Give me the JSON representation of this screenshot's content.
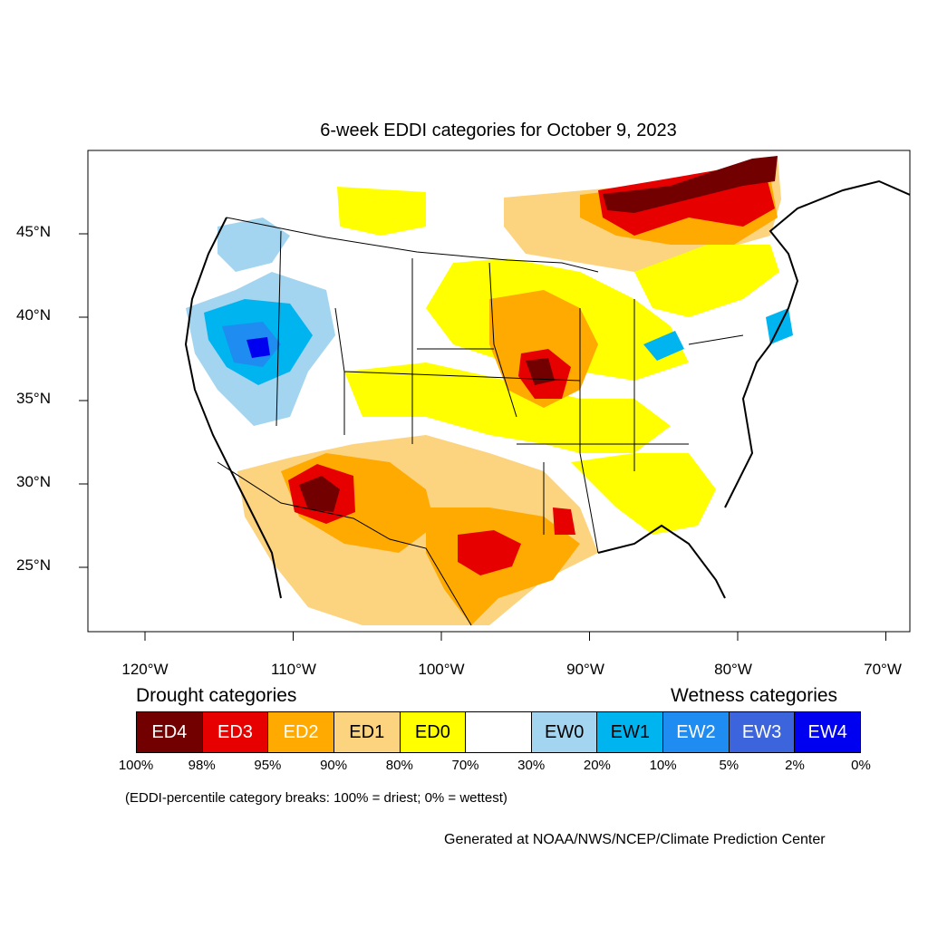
{
  "title": "6-week EDDI categories for October 9, 2023",
  "axes": {
    "lat_labels": [
      "45°N",
      "40°N",
      "35°N",
      "30°N",
      "25°N"
    ],
    "lon_labels": [
      "120°W",
      "110°W",
      "100°W",
      "90°W",
      "80°W",
      "70°W"
    ],
    "lat_ticks": [
      45,
      40,
      35,
      30,
      25
    ],
    "lon_ticks": [
      -120,
      -110,
      -100,
      -90,
      -80,
      -70
    ],
    "lat_range": [
      21,
      50
    ],
    "lon_range": [
      -124,
      -68.5
    ]
  },
  "legend": {
    "drought_heading": "Drought categories",
    "wetness_heading": "Wetness categories",
    "categories": [
      {
        "label": "ED4",
        "color": "#730000",
        "text_color": "#ffffff"
      },
      {
        "label": "ED3",
        "color": "#e60000",
        "text_color": "#ffffff"
      },
      {
        "label": "ED2",
        "color": "#ffaa00",
        "text_color": "#ffffff"
      },
      {
        "label": "ED1",
        "color": "#fcd37f",
        "text_color": "#000000"
      },
      {
        "label": "ED0",
        "color": "#ffff00",
        "text_color": "#000000"
      },
      {
        "label": "",
        "color": "#ffffff",
        "text_color": "#000000"
      },
      {
        "label": "EW0",
        "color": "#a3d4f0",
        "text_color": "#000000"
      },
      {
        "label": "EW1",
        "color": "#00b4f0",
        "text_color": "#000000"
      },
      {
        "label": "EW2",
        "color": "#1e8cf0",
        "text_color": "#ffffff"
      },
      {
        "label": "EW3",
        "color": "#3c64dc",
        "text_color": "#ffffff"
      },
      {
        "label": "EW4",
        "color": "#0000f0",
        "text_color": "#ffffff"
      }
    ],
    "percentiles": [
      "100%",
      "98%",
      "95%",
      "90%",
      "80%",
      "70%",
      "30%",
      "20%",
      "10%",
      "5%",
      "2%",
      "0%"
    ]
  },
  "note": "(EDDI-percentile category breaks: 100% = driest; 0% = wettest)",
  "credit": "Generated at NOAA/NWS/NCEP/Climate Prediction Center"
}
